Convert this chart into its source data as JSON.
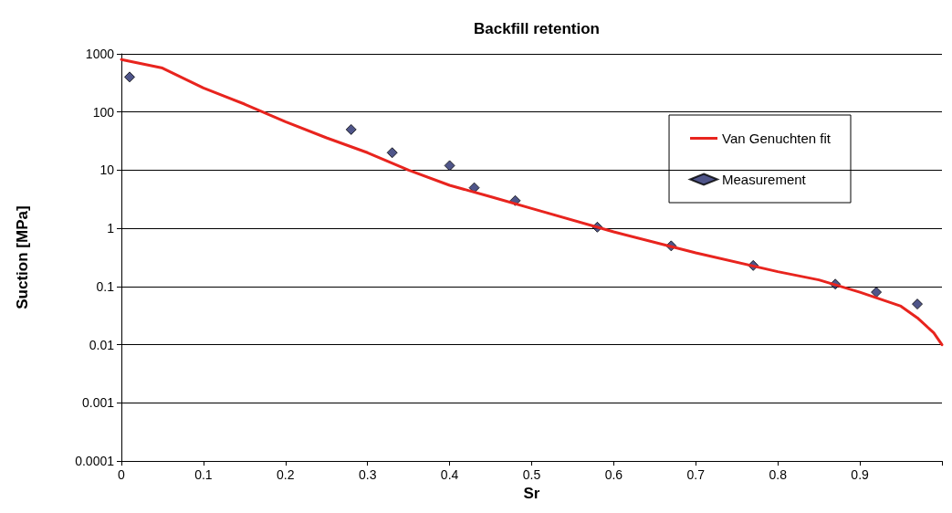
{
  "chart_data": {
    "type": "scatter",
    "title": "Backfill retention",
    "xlabel": "Sr",
    "ylabel": "Suction [MPa]",
    "xlim": [
      0,
      1
    ],
    "xticks": [
      0,
      0.1,
      0.2,
      0.3,
      0.4,
      0.5,
      0.6,
      0.7,
      0.8,
      0.9,
      {
        "value": 1,
        "label": null
      }
    ],
    "ylim": [
      0.0001,
      1000
    ],
    "yticks": [
      0.0001,
      0.001,
      0.01,
      0.1,
      1,
      10,
      100,
      1000
    ],
    "log": "y",
    "grid": "y",
    "legend": "top right",
    "series": [
      {
        "name": "Van Genuchten fit",
        "type": "line",
        "color": "#e8241e",
        "marker": "none",
        "line_style": "solid",
        "x": [
          0,
          0.05,
          0.1,
          0.15,
          0.2,
          0.25,
          0.3,
          0.35,
          0.4,
          0.45,
          0.5,
          0.6,
          0.7,
          0.8,
          0.85,
          0.9,
          0.95,
          0.97,
          0.99,
          1.0
        ],
        "values": [
          800,
          570,
          260,
          137,
          68,
          36,
          20,
          10,
          5.5,
          3.5,
          2.2,
          0.87,
          0.38,
          0.18,
          0.13,
          0.08,
          0.046,
          0.029,
          0.016,
          0.01
        ]
      },
      {
        "name": "Measurement",
        "color": "#232a6b",
        "marker": "diamond",
        "x": [
          0.01,
          0.28,
          0.33,
          0.4,
          0.43,
          0.48,
          0.58,
          0.67,
          0.77,
          0.87,
          0.92,
          0.97
        ],
        "values": [
          400,
          50,
          20,
          12,
          5,
          3,
          1.05,
          0.5,
          0.23,
          0.11,
          0.08,
          0.05
        ]
      }
    ]
  }
}
